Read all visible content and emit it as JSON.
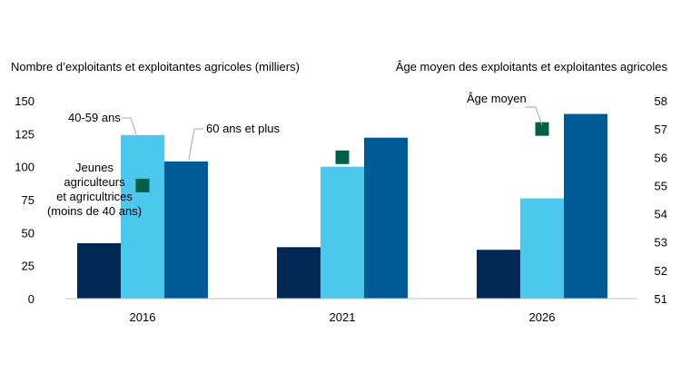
{
  "chart_data": {
    "type": "bar",
    "left_axis_title": "Nombre d’exploitants et exploitantes agricoles (milliers)",
    "right_axis_title": "Âge moyen des exploitants et exploitantes agricoles",
    "categories": [
      "2016",
      "2021",
      "2026"
    ],
    "ylim": [
      0,
      150
    ],
    "yticks": [
      "0",
      "25",
      "50",
      "75",
      "100",
      "125",
      "150"
    ],
    "y2lim": [
      51,
      58
    ],
    "y2ticks": [
      "51",
      "52",
      "53",
      "54",
      "55",
      "56",
      "57",
      "58"
    ],
    "grid": false,
    "series": [
      {
        "name_lines": [
          "Jeunes",
          "agriculteurs",
          "et agricultrices",
          "(moins de 40 ans)"
        ],
        "color": "#002855",
        "values": [
          42,
          39,
          37
        ]
      },
      {
        "name_lines": [
          "40-59 ans"
        ],
        "color": "#4cc7ee",
        "values": [
          124,
          100,
          76
        ]
      },
      {
        "name_lines": [
          "60 ans et plus"
        ],
        "color": "#005a96",
        "values": [
          104,
          122,
          140
        ]
      }
    ],
    "markers": {
      "name": "Âge moyen",
      "axis": "right",
      "color": "#005f48",
      "values": [
        55.0,
        56.0,
        57.0
      ]
    }
  }
}
